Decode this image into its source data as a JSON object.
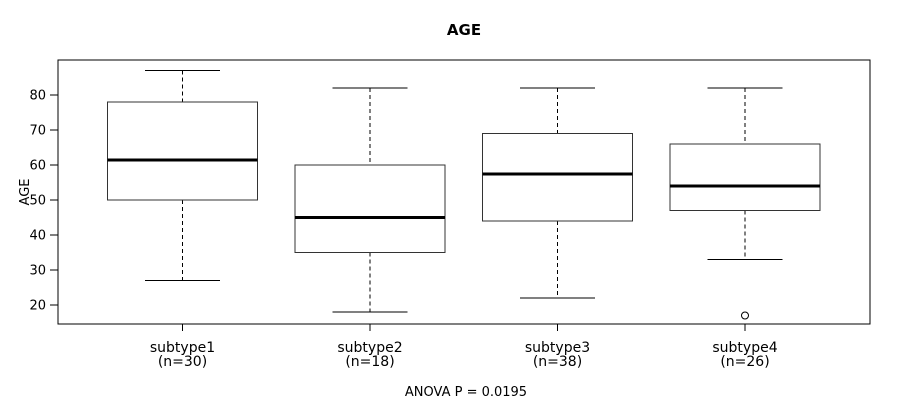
{
  "page": {
    "background": "#ffffff"
  },
  "chart_data": {
    "type": "boxplot",
    "title": "AGE",
    "ylabel": "AGE",
    "xlabel": "",
    "footer": "ANOVA P = 0.0195",
    "yticks": [
      20,
      30,
      40,
      50,
      60,
      70,
      80
    ],
    "ylim": [
      14.6,
      90
    ],
    "grid": false,
    "legend": "none",
    "categories": [
      "subtype1",
      "subtype2",
      "subtype3",
      "subtype4"
    ],
    "category_sublabels": [
      "(n=30)",
      "(n=18)",
      "(n=38)",
      "(n=26)"
    ],
    "series": [
      {
        "name": "subtype1",
        "n": 30,
        "whisker_low": 27,
        "q1": 50,
        "median": 61.5,
        "q3": 78,
        "whisker_high": 87,
        "outliers": []
      },
      {
        "name": "subtype2",
        "n": 18,
        "whisker_low": 18,
        "q1": 35,
        "median": 45,
        "q3": 60,
        "whisker_high": 82,
        "outliers": []
      },
      {
        "name": "subtype3",
        "n": 38,
        "whisker_low": 22,
        "q1": 44,
        "median": 57.5,
        "q3": 69,
        "whisker_high": 82,
        "outliers": []
      },
      {
        "name": "subtype4",
        "n": 26,
        "whisker_low": 33,
        "q1": 47,
        "median": 54,
        "q3": 66,
        "whisker_high": 82,
        "outliers": [
          17
        ]
      }
    ],
    "colors": {
      "line": "#000000",
      "box_border": "#333333",
      "box_fill": "#ffffff",
      "median": "#000000",
      "text": "#000000",
      "background": "#ffffff"
    }
  }
}
